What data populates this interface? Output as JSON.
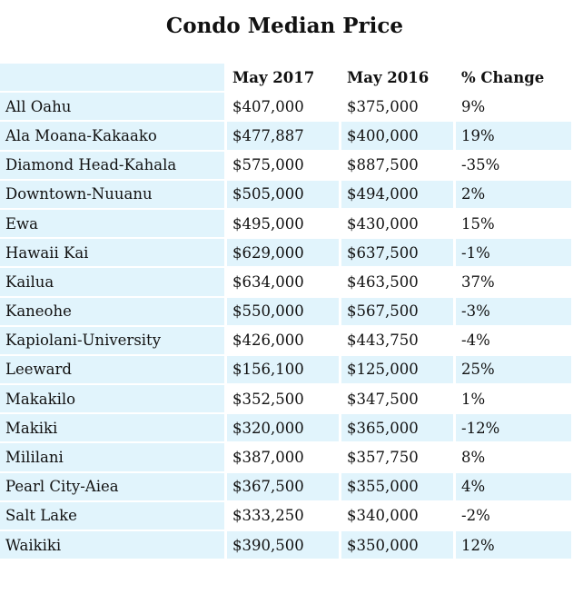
{
  "title": "Condo Median Price",
  "columns": [
    "",
    "May 2017",
    "May 2016",
    "% Change"
  ],
  "rows": [
    {
      "area": "All Oahu",
      "may2017": "$407,000",
      "may2016": "$375,000",
      "change": "9%"
    },
    {
      "area": "Ala Moana-Kakaako",
      "may2017": "$477,887",
      "may2016": "$400,000",
      "change": "19%"
    },
    {
      "area": "Diamond Head-Kahala",
      "may2017": "$575,000",
      "may2016": "$887,500",
      "change": "-35%"
    },
    {
      "area": "Downtown-Nuuanu",
      "may2017": "$505,000",
      "may2016": "$494,000",
      "change": "2%"
    },
    {
      "area": "Ewa",
      "may2017": "$495,000",
      "may2016": "$430,000",
      "change": "15%"
    },
    {
      "area": "Hawaii Kai",
      "may2017": "$629,000",
      "may2016": "$637,500",
      "change": "-1%"
    },
    {
      "area": "Kailua",
      "may2017": "$634,000",
      "may2016": "$463,500",
      "change": "37%"
    },
    {
      "area": "Kaneohe",
      "may2017": "$550,000",
      "may2016": "$567,500",
      "change": "-3%"
    },
    {
      "area": "Kapiolani-University",
      "may2017": "$426,000",
      "may2016": "$443,750",
      "change": "-4%"
    },
    {
      "area": "Leeward",
      "may2017": "$156,100",
      "may2016": "$125,000",
      "change": "25%"
    },
    {
      "area": "Makakilo",
      "may2017": "$352,500",
      "may2016": "$347,500",
      "change": "1%"
    },
    {
      "area": "Makiki",
      "may2017": "$320,000",
      "may2016": "$365,000",
      "change": "-12%"
    },
    {
      "area": "Mililani",
      "may2017": "$387,000",
      "may2016": "$357,750",
      "change": "8%"
    },
    {
      "area": "Pearl City-Aiea",
      "may2017": "$367,500",
      "may2016": "$355,000",
      "change": "4%"
    },
    {
      "area": "Salt Lake",
      "may2017": "$333,250",
      "may2016": "$340,000",
      "change": "-2%"
    },
    {
      "area": "Waikiki",
      "may2017": "$390,500",
      "may2016": "$350,000",
      "change": "12%"
    }
  ],
  "colors": {
    "row_band": "#e1f4fc",
    "background": "#ffffff"
  }
}
